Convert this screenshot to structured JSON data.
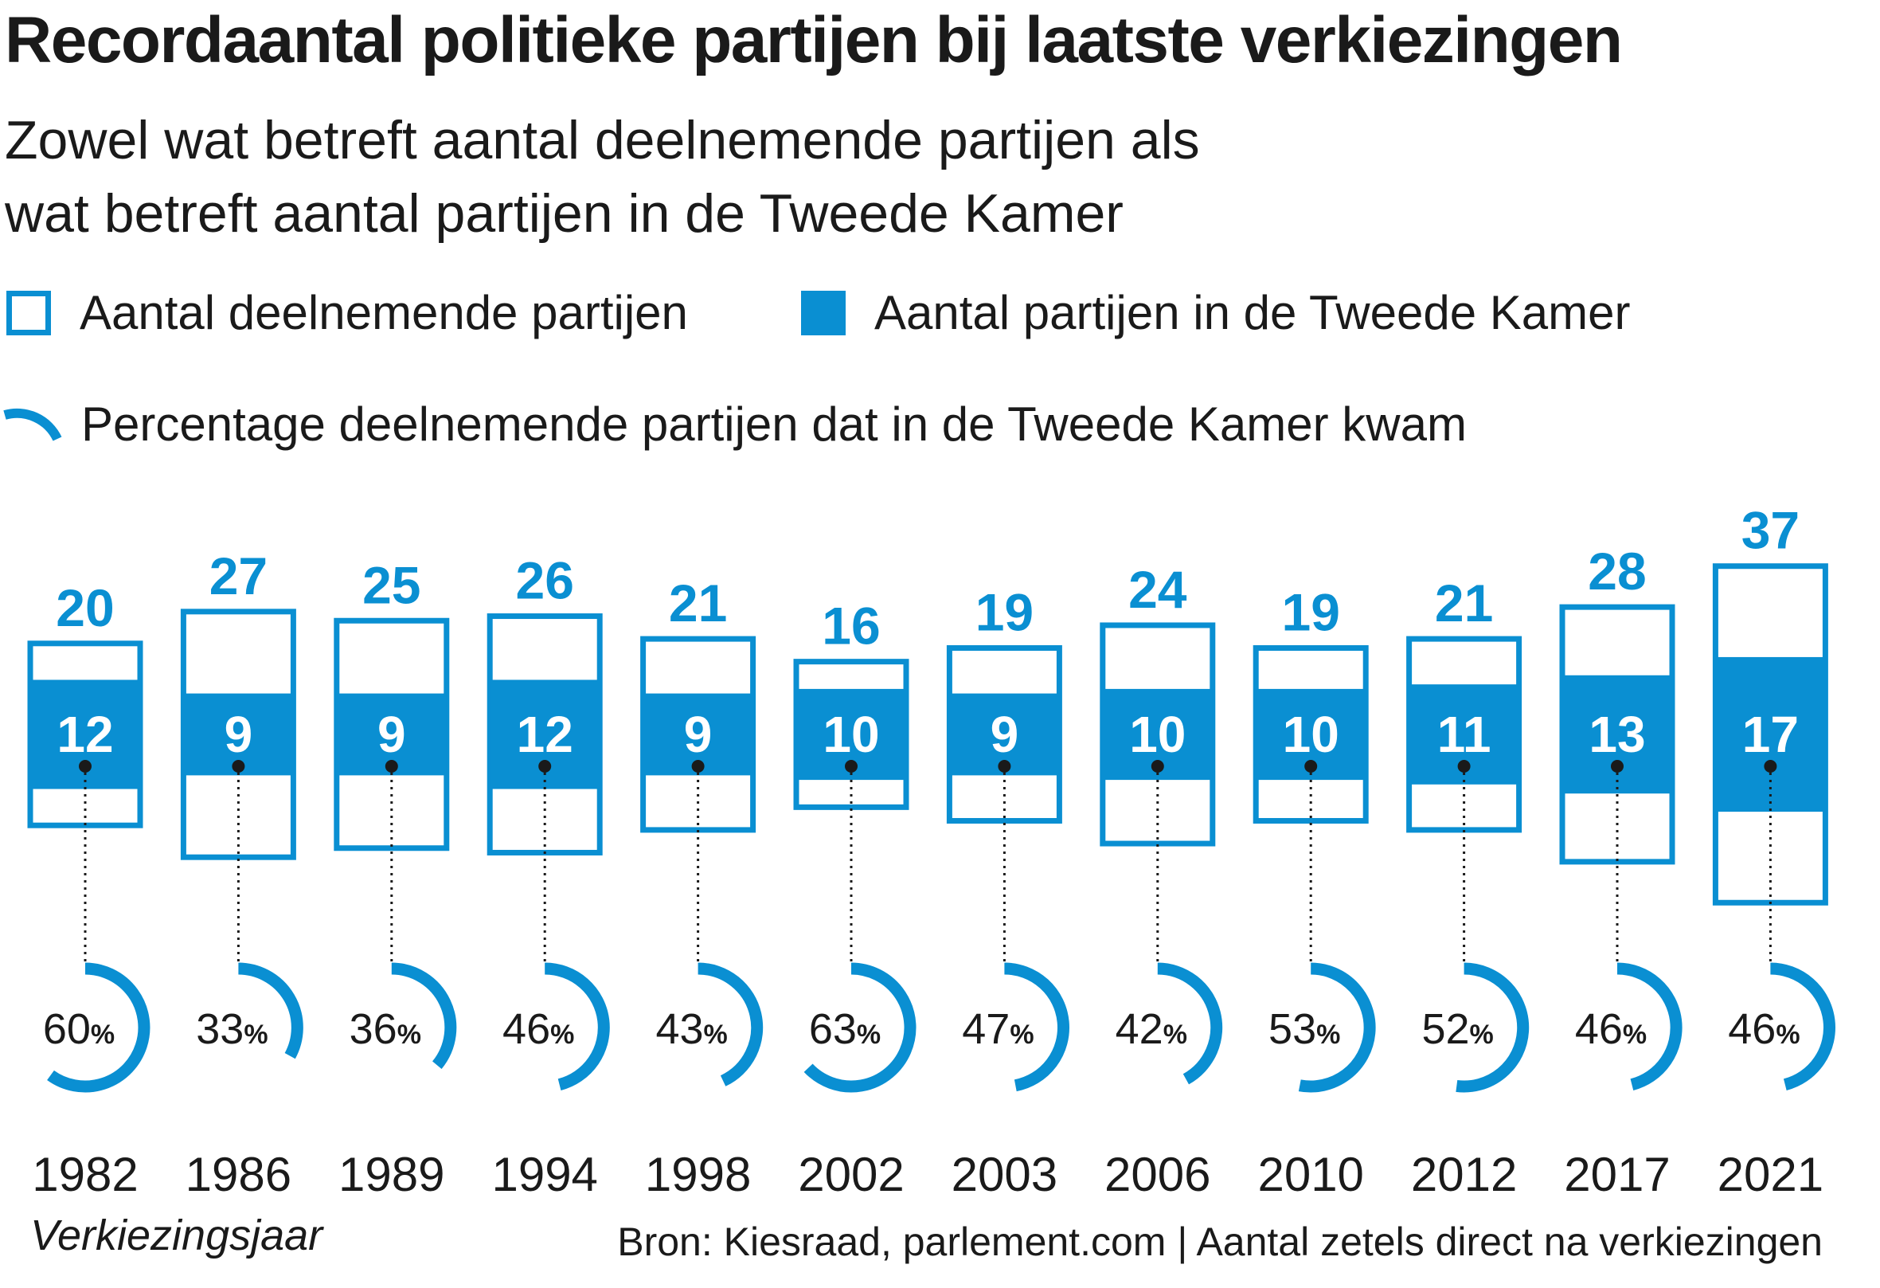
{
  "title": "Recordaantal politieke partijen bij laatste verkiezingen",
  "subtitle_line1": "Zowel wat betreft aantal deelnemende partijen als",
  "subtitle_line2": "wat betreft aantal partijen in de Tweede Kamer",
  "legend": {
    "participating": "Aantal deelnemende partijen",
    "in_kamer": "Aantal partijen in de Tweede Kamer",
    "percentage": "Percentage deelnemende partijen dat in de Tweede Kamer kwam"
  },
  "colors": {
    "accent": "#0a8fd2",
    "text": "#1a1a1a"
  },
  "xaxis_label": "Verkiezingsjaar",
  "source": "Bron: Kiesraad, parlement.com | Aantal zetels direct na verkiezingen",
  "chart_data": {
    "type": "bar",
    "categories": [
      "1982",
      "1986",
      "1989",
      "1994",
      "1998",
      "2002",
      "2003",
      "2006",
      "2010",
      "2012",
      "2017",
      "2021"
    ],
    "series": [
      {
        "name": "Aantal deelnemende partijen",
        "values": [
          20,
          27,
          25,
          26,
          21,
          16,
          19,
          24,
          19,
          21,
          28,
          37
        ]
      },
      {
        "name": "Aantal partijen in de Tweede Kamer",
        "values": [
          12,
          9,
          9,
          12,
          9,
          10,
          9,
          10,
          10,
          11,
          13,
          17
        ]
      },
      {
        "name": "Percentage deelnemende partijen dat in de Tweede Kamer kwam",
        "values": [
          60,
          33,
          36,
          46,
          43,
          63,
          47,
          42,
          53,
          52,
          46,
          46
        ],
        "unit": "%"
      }
    ],
    "xlabel": "Verkiezingsjaar",
    "ylabel": ""
  }
}
